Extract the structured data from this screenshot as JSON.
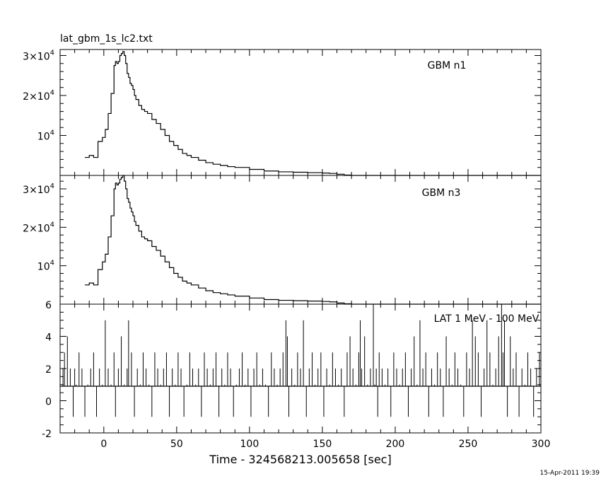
{
  "file_title": "lat_gbm_1s_lc2.txt",
  "timestamp": "15-Apr-2011 19:39",
  "chart_data": [
    {
      "type": "line",
      "panel": "top",
      "label": "GBM n1",
      "ylim": [
        0,
        31500
      ],
      "ytick_labels": [
        {
          "value": 10000,
          "base": "10",
          "exp": "4"
        },
        {
          "value": 20000,
          "base": "2×10",
          "exp": "4"
        },
        {
          "value": 30000,
          "base": "3×10",
          "exp": "4"
        }
      ],
      "x": [
        -13,
        -10,
        -7,
        -4,
        -1,
        1,
        3,
        5,
        7,
        8,
        9,
        10,
        11,
        12,
        13,
        14,
        15,
        16,
        17,
        18,
        19,
        20,
        21,
        22,
        24,
        26,
        28,
        30,
        33,
        36,
        39,
        42,
        45,
        48,
        51,
        54,
        57,
        60,
        65,
        70,
        75,
        80,
        85,
        90,
        100,
        110,
        120,
        130,
        140,
        150,
        155,
        160,
        165,
        170,
        180,
        200,
        220,
        240,
        260,
        280,
        300
      ],
      "y": [
        4500,
        5000,
        4500,
        8500,
        9500,
        11500,
        15500,
        20500,
        27500,
        28500,
        28000,
        28500,
        30000,
        30500,
        31000,
        30000,
        28000,
        25500,
        24500,
        23000,
        22500,
        21500,
        20000,
        19000,
        17500,
        16500,
        16000,
        15500,
        14000,
        13000,
        11500,
        10000,
        8500,
        7500,
        6500,
        5500,
        5000,
        4500,
        3800,
        3200,
        2800,
        2500,
        2200,
        2000,
        1500,
        1100,
        900,
        800,
        700,
        600,
        500,
        300,
        100,
        0,
        0,
        0,
        0,
        0,
        0,
        0,
        0
      ]
    },
    {
      "type": "line",
      "panel": "middle",
      "label": "GBM n3",
      "ylim": [
        0,
        33500
      ],
      "ytick_labels": [
        {
          "value": 10000,
          "base": "10",
          "exp": "4"
        },
        {
          "value": 20000,
          "base": "2×10",
          "exp": "4"
        },
        {
          "value": 30000,
          "base": "3×10",
          "exp": "4"
        }
      ],
      "x": [
        -13,
        -10,
        -7,
        -4,
        -1,
        1,
        3,
        5,
        7,
        8,
        9,
        10,
        11,
        12,
        13,
        14,
        15,
        16,
        17,
        18,
        19,
        20,
        21,
        22,
        24,
        26,
        28,
        30,
        33,
        36,
        39,
        42,
        45,
        48,
        51,
        54,
        57,
        60,
        65,
        70,
        75,
        80,
        85,
        90,
        100,
        110,
        120,
        130,
        140,
        150,
        155,
        160,
        165,
        170,
        180,
        200,
        220,
        240,
        260,
        280,
        300
      ],
      "y": [
        5000,
        5500,
        5000,
        9000,
        11000,
        13000,
        17500,
        23000,
        30000,
        31500,
        31000,
        31500,
        32500,
        33000,
        33500,
        32000,
        30000,
        27500,
        26500,
        25000,
        24000,
        23000,
        21500,
        20500,
        19000,
        17500,
        17000,
        16500,
        15000,
        14000,
        12500,
        11000,
        9500,
        8000,
        7000,
        6000,
        5500,
        5000,
        4200,
        3500,
        3000,
        2700,
        2400,
        2100,
        1600,
        1200,
        1000,
        900,
        800,
        700,
        600,
        300,
        100,
        0,
        0,
        0,
        0,
        0,
        0,
        0,
        0
      ]
    },
    {
      "type": "line",
      "panel": "bottom",
      "label": "LAT 1 MeV - 100 MeV",
      "xlim": [
        -30,
        300
      ],
      "ylim": [
        -2,
        6
      ],
      "xticks": [
        0,
        50,
        100,
        150,
        200,
        250,
        300
      ],
      "yticks": [
        -2,
        0,
        2,
        4,
        6
      ],
      "xlabel": "Time - 324568213.005658 [sec]",
      "baseline": 0.9,
      "spikes_x": [
        -30,
        -28,
        -27,
        -25,
        -23,
        -21,
        -20,
        -19,
        -17,
        -15,
        -13,
        -11,
        -9,
        -7,
        -5,
        -3,
        -1,
        1,
        3,
        5,
        7,
        8,
        10,
        12,
        14,
        16,
        17,
        19,
        21,
        23,
        25,
        27,
        29,
        31,
        33,
        35,
        37,
        39,
        41,
        43,
        45,
        47,
        49,
        51,
        53,
        55,
        57,
        59,
        61,
        63,
        65,
        67,
        69,
        71,
        73,
        75,
        77,
        79,
        81,
        83,
        85,
        87,
        89,
        91,
        93,
        95,
        97,
        99,
        101,
        103,
        105,
        107,
        109,
        111,
        113,
        115,
        117,
        119,
        121,
        123,
        125,
        126,
        127,
        129,
        131,
        133,
        135,
        137,
        139,
        141,
        143,
        145,
        147,
        149,
        151,
        153,
        155,
        157,
        159,
        161,
        163,
        165,
        167,
        169,
        171,
        173,
        175,
        176,
        177,
        179,
        181,
        183,
        185,
        186,
        187,
        188,
        189,
        191,
        193,
        195,
        197,
        199,
        201,
        203,
        205,
        207,
        209,
        211,
        213,
        215,
        217,
        219,
        221,
        223,
        225,
        227,
        229,
        231,
        233,
        235,
        237,
        239,
        241,
        243,
        245,
        247,
        249,
        251,
        253,
        255,
        257,
        259,
        261,
        263,
        265,
        267,
        269,
        271,
        273,
        274,
        275,
        277,
        279,
        281,
        283,
        285,
        287,
        289,
        291,
        293,
        295,
        297,
        299
      ],
      "spikes_y": [
        5,
        2,
        3,
        4,
        2,
        -1,
        2,
        1,
        3,
        2,
        -1,
        1,
        2,
        3,
        -1,
        2,
        1,
        5,
        2,
        1,
        3,
        -1,
        2,
        4,
        1,
        2,
        5,
        3,
        -1,
        2,
        1,
        3,
        2,
        1,
        -1,
        3,
        2,
        1,
        2,
        3,
        -1,
        2,
        1,
        3,
        2,
        -1,
        1,
        3,
        2,
        1,
        2,
        -1,
        3,
        2,
        1,
        2,
        3,
        -1,
        2,
        1,
        3,
        2,
        -1,
        1,
        2,
        3,
        1,
        2,
        -1,
        2,
        3,
        1,
        2,
        1,
        -1,
        3,
        2,
        1,
        2,
        3,
        5,
        4,
        -1,
        2,
        1,
        3,
        2,
        5,
        -1,
        2,
        3,
        1,
        2,
        3,
        -1,
        2,
        1,
        3,
        2,
        1,
        2,
        -1,
        3,
        4,
        2,
        1,
        3,
        5,
        2,
        4,
        1,
        2,
        6,
        1,
        2,
        -1,
        3,
        2,
        1,
        2,
        -1,
        3,
        2,
        1,
        2,
        3,
        -1,
        2,
        4,
        1,
        5,
        2,
        3,
        -1,
        2,
        1,
        3,
        2,
        -1,
        4,
        2,
        1,
        3,
        2,
        1,
        -1,
        3,
        2,
        5,
        4,
        3,
        -1,
        2,
        5,
        3,
        1,
        2,
        4,
        6,
        3,
        5,
        -1,
        4,
        2,
        3,
        -1,
        2,
        1,
        3,
        2,
        -1,
        2,
        3
      ]
    }
  ]
}
